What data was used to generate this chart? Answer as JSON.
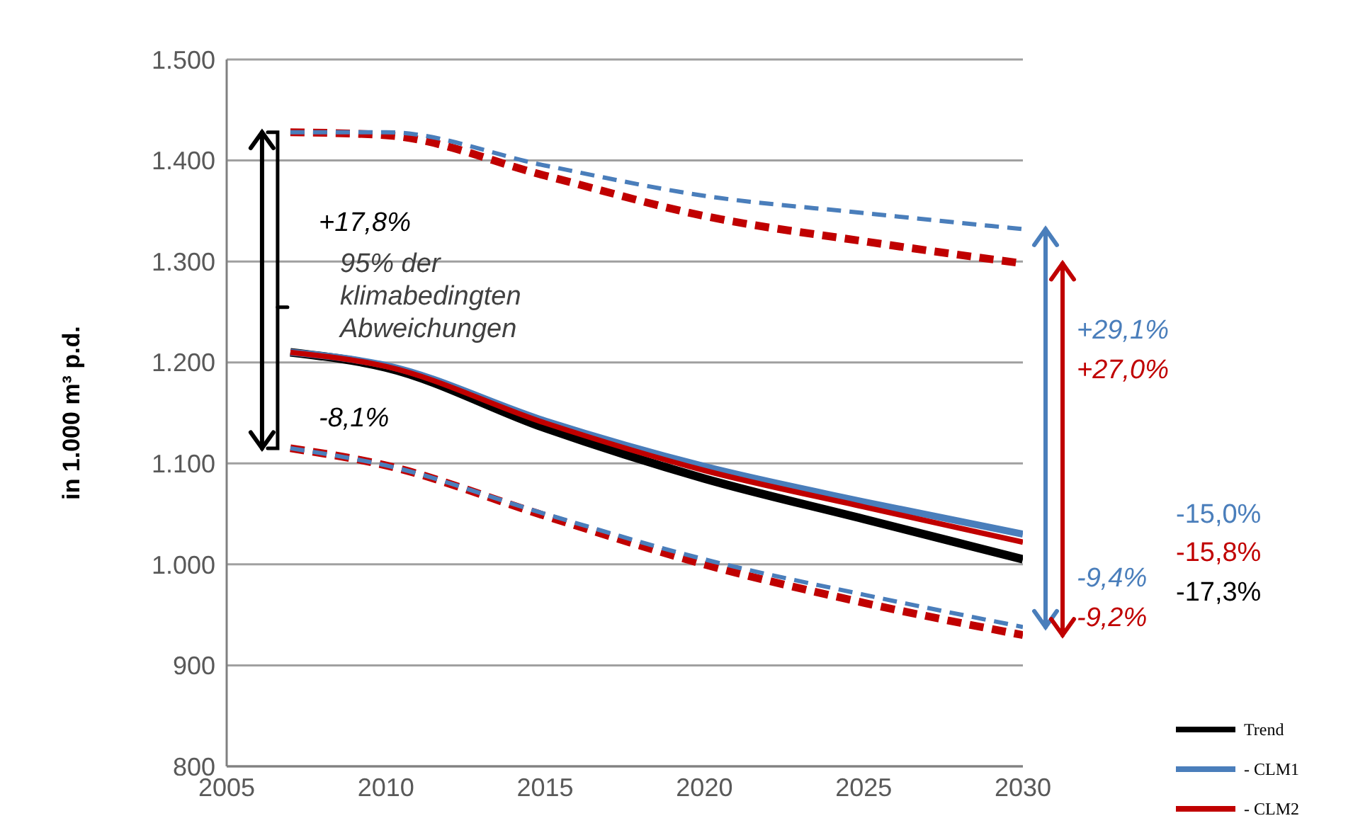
{
  "chart_data": {
    "type": "line",
    "ylabel": "in 1.000 m³ p.d.",
    "x": [
      2007,
      2010,
      2015,
      2020,
      2025,
      2030
    ],
    "series": [
      {
        "name": "Trend",
        "color": "#000000",
        "values": [
          1210,
          1195,
          1135,
          1085,
          1045,
          1005
        ]
      },
      {
        "name": "- CLM1",
        "color": "#4a7ebb",
        "values": [
          1210,
          1197,
          1142,
          1097,
          1062,
          1030
        ]
      },
      {
        "name": "- CLM2",
        "color": "#c00000",
        "values": [
          1210,
          1196,
          1140,
          1093,
          1057,
          1022
        ]
      },
      {
        "color": "#4a7ebb",
        "line_style": "dashed",
        "values": [
          1428,
          1428,
          1395,
          1365,
          1348,
          1332
        ]
      },
      {
        "color": "#c00000",
        "line_style": "dashed",
        "values": [
          1428,
          1425,
          1385,
          1345,
          1320,
          1298
        ]
      },
      {
        "color": "#4a7ebb",
        "line_style": "dashed",
        "values": [
          1115,
          1098,
          1050,
          1005,
          970,
          938
        ]
      },
      {
        "color": "#c00000",
        "line_style": "dashed",
        "values": [
          1115,
          1098,
          1048,
          1000,
          962,
          930
        ]
      }
    ],
    "xlim": [
      2005,
      2030
    ],
    "xticks": [
      2005,
      2010,
      2015,
      2020,
      2025,
      2030
    ],
    "ylim": [
      800,
      1500
    ],
    "yticks": [
      {
        "value": 800,
        "label": "800"
      },
      {
        "value": 900,
        "label": "900"
      },
      {
        "value": 1000,
        "label": "1.000"
      },
      {
        "value": 1100,
        "label": "1.100"
      },
      {
        "value": 1200,
        "label": "1.200"
      },
      {
        "value": 1300,
        "label": "1.300"
      },
      {
        "value": 1400,
        "label": "1.400"
      },
      {
        "value": 1500,
        "label": "1.500"
      }
    ],
    "grid": "y",
    "legend": "bottom right",
    "marker": "none",
    "line_style": "solid",
    "annotations": [
      "+17,8%",
      "95% der klimabedingten Abweichungen",
      "-8,1%",
      "+29,1%",
      "+27,0%",
      "-9,4%",
      "-9,2%",
      "-15,0%",
      "-15,8%",
      "-17,3%"
    ]
  }
}
